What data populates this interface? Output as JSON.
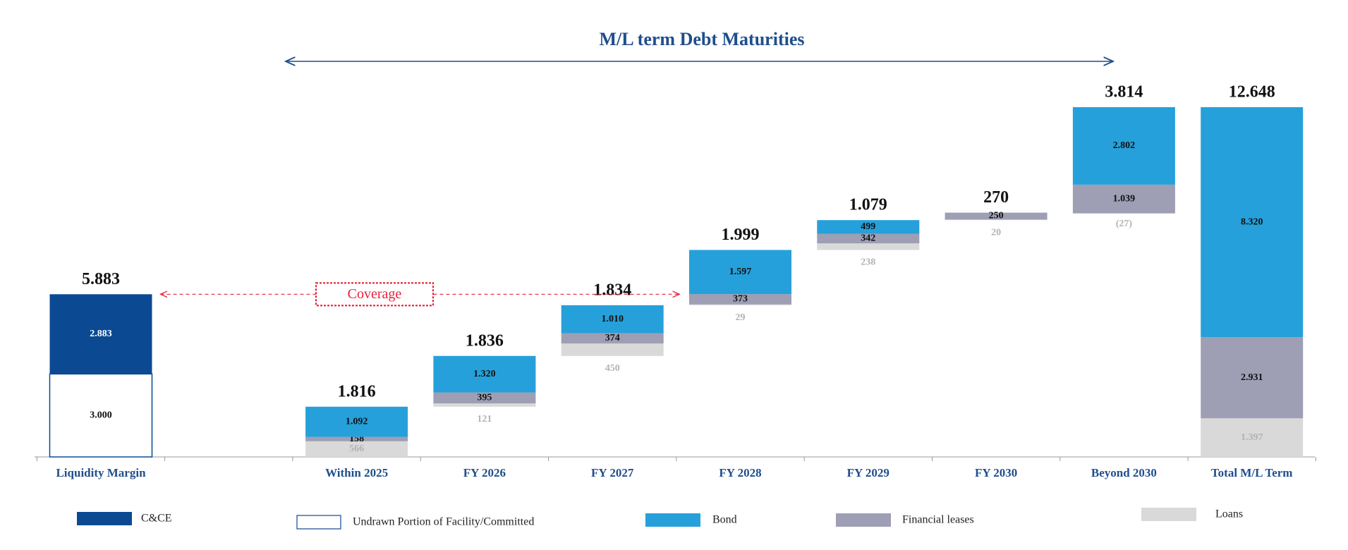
{
  "chart_data": {
    "type": "waterfall",
    "title": "M/L term Debt Maturities",
    "coverage_label": "Coverage",
    "categories": [
      "Liquidity Margin",
      null,
      "Within 2025",
      "FY 2026",
      "FY 2027",
      "FY 2028",
      "FY 2029",
      "FY 2030",
      "Beyond 2030",
      "Total M/L Term"
    ],
    "series": [
      {
        "name": "C&CE",
        "color": "#0b4a93",
        "values": [
          2883,
          null,
          null,
          null,
          null,
          null,
          null,
          null,
          null,
          null
        ],
        "value_labels": [
          "2.883",
          null,
          null,
          null,
          null,
          null,
          null,
          null,
          null,
          null
        ]
      },
      {
        "name": "Undrawn Portion of  Facility/Committed",
        "color": "#ffffff",
        "values": [
          3000,
          null,
          null,
          null,
          null,
          null,
          null,
          null,
          null,
          null
        ],
        "value_labels": [
          "3.000",
          null,
          null,
          null,
          null,
          null,
          null,
          null,
          null,
          null
        ]
      },
      {
        "name": "Bond",
        "color": "#26a0da",
        "values": [
          null,
          null,
          1092,
          1320,
          1010,
          1597,
          499,
          null,
          2802,
          8320
        ],
        "value_labels": [
          null,
          null,
          "1.092",
          "1.320",
          "1.010",
          "1.597",
          "499",
          null,
          "2.802",
          "8.320"
        ]
      },
      {
        "name": "Financial leases",
        "color": "#9e9eb4",
        "values": [
          null,
          null,
          158,
          395,
          374,
          373,
          342,
          250,
          1039,
          2931
        ],
        "value_labels": [
          null,
          null,
          "158",
          "395",
          "374",
          "373",
          "342",
          "250",
          "1.039",
          "2.931"
        ]
      },
      {
        "name": "Loans",
        "color": "#d9d9d9",
        "values": [
          null,
          null,
          566,
          121,
          450,
          29,
          238,
          20,
          -27,
          1397
        ],
        "value_labels": [
          null,
          null,
          "566",
          "121",
          "450",
          "29",
          "238",
          "20",
          "(27)",
          "1.397"
        ]
      }
    ],
    "totals": [
      5883,
      null,
      1816,
      1836,
      1834,
      1999,
      1079,
      270,
      3814,
      12648
    ],
    "total_labels": [
      "5.883",
      null,
      "1.816",
      "1.836",
      "1.834",
      "1.999",
      "1.079",
      "270",
      "3.814",
      "12.648"
    ]
  }
}
